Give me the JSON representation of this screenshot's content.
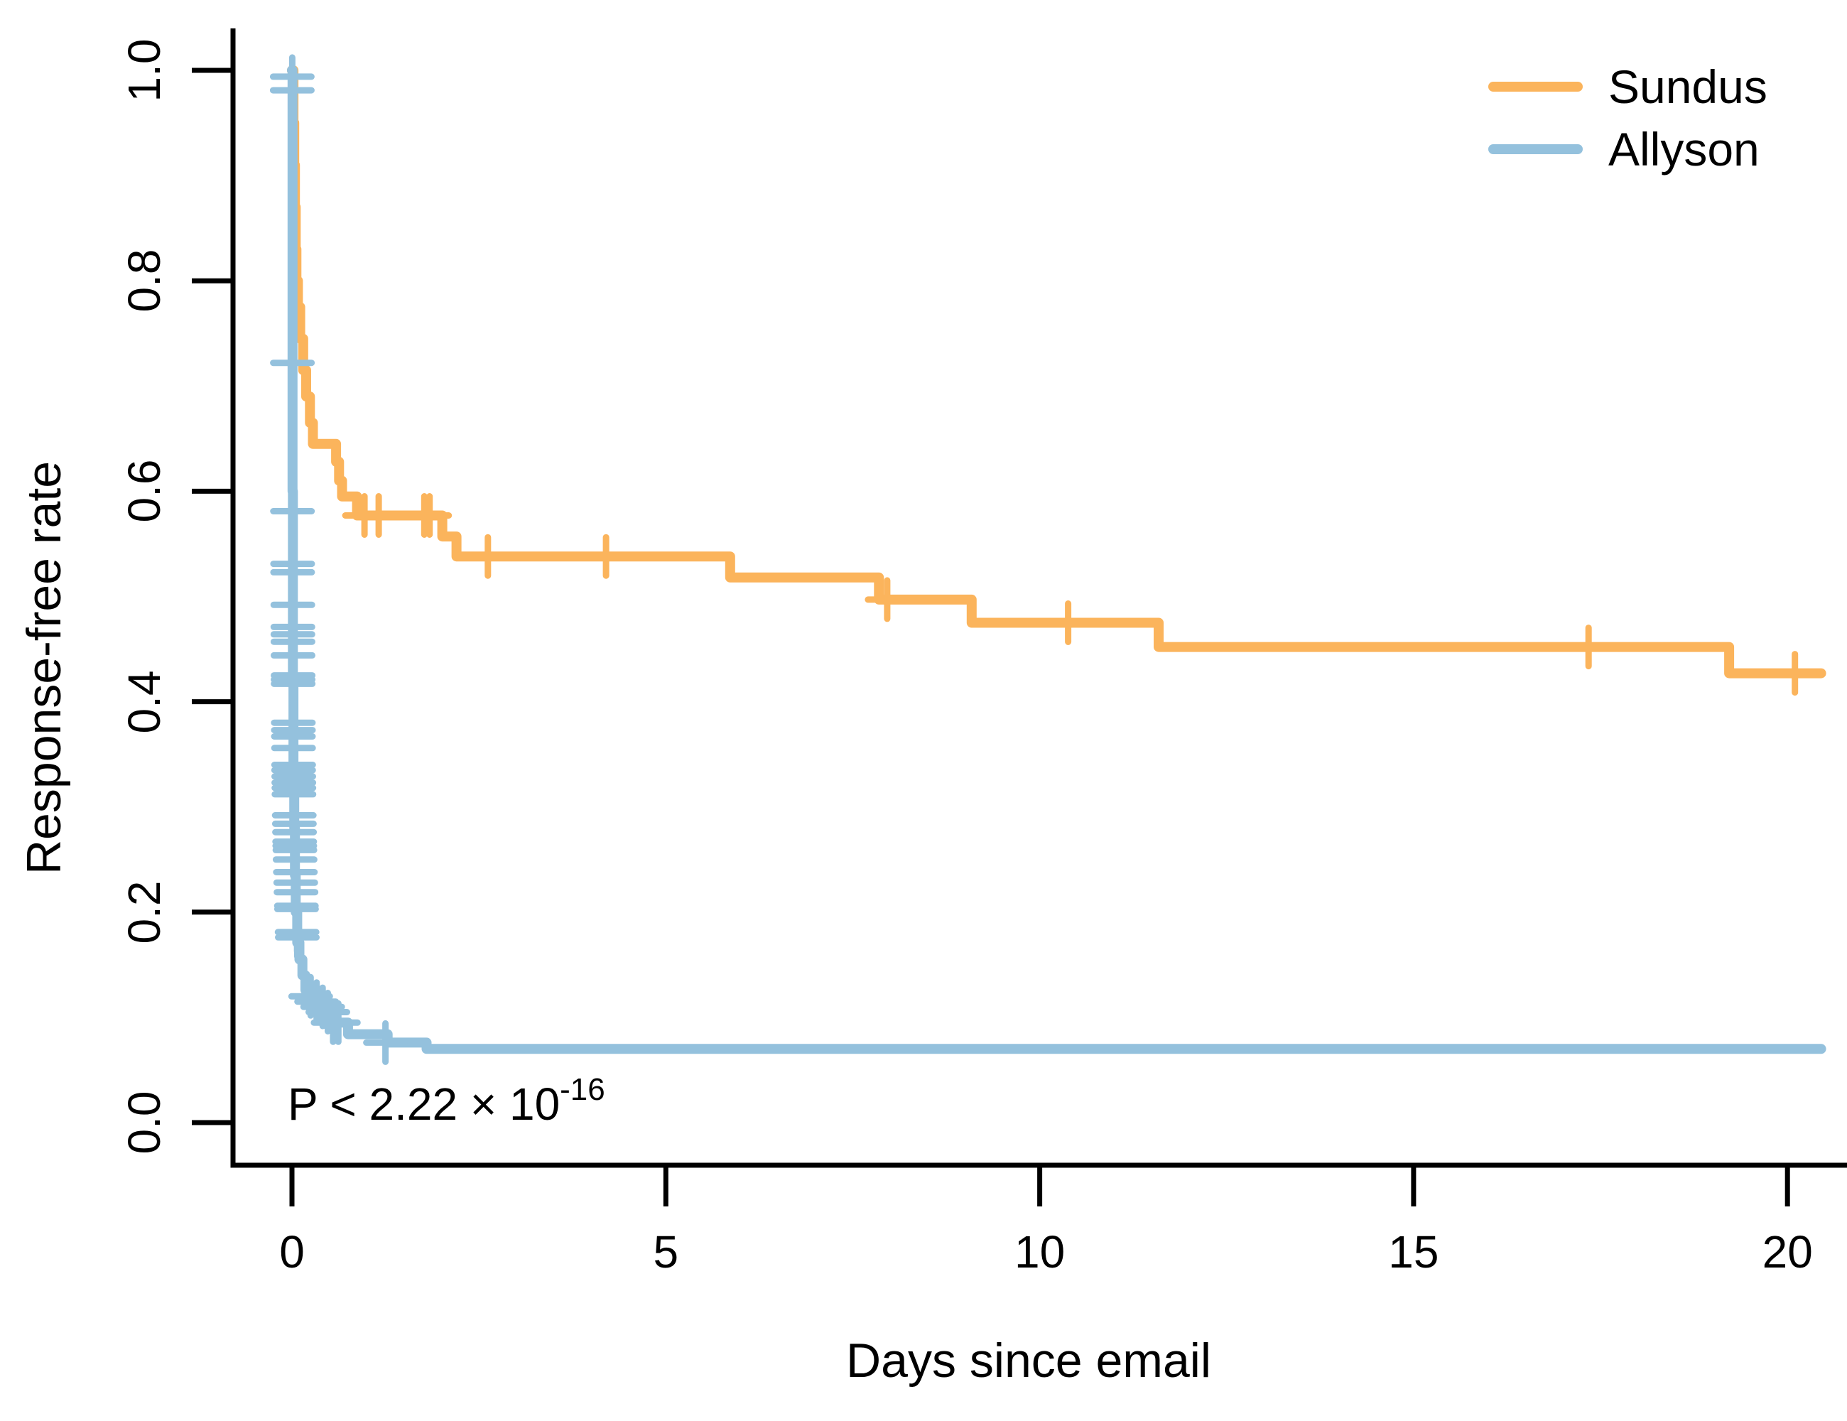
{
  "figure": {
    "p_value": {
      "text": "P < 2.22 × 10",
      "exponent": "-16"
    }
  },
  "axes": {
    "x": {
      "label": "Days since email",
      "ticks": [
        "0",
        "5",
        "10",
        "15",
        "20"
      ],
      "tick_values": [
        0,
        5,
        10,
        15,
        20
      ],
      "range": [
        0,
        20.8
      ]
    },
    "y": {
      "label": "Response-free rate",
      "ticks": [
        "0.0",
        "0.2",
        "0.4",
        "0.6",
        "0.8",
        "1.0"
      ],
      "tick_values": [
        0,
        0.2,
        0.4,
        0.6,
        0.8,
        1.0
      ],
      "range": [
        0,
        1
      ]
    }
  },
  "legend": {
    "items": [
      {
        "label": "Sundus",
        "color": "#FBB45C"
      },
      {
        "label": "Allyson",
        "color": "#94C1DD"
      }
    ]
  },
  "chart_data": {
    "type": "line",
    "subtype": "kaplan-meier-step",
    "title": "",
    "xlabel": "Days since email",
    "ylabel": "Response-free rate",
    "xlim": [
      0,
      20.8
    ],
    "ylim": [
      0,
      1
    ],
    "grid": false,
    "legend_position": "top-right",
    "annotation": "P < 2.22 × 10^-16",
    "series": [
      {
        "name": "Sundus",
        "color": "#FBB45C",
        "steps": [
          [
            0.0,
            1.0
          ],
          [
            0.02,
            0.95
          ],
          [
            0.03,
            0.91
          ],
          [
            0.04,
            0.87
          ],
          [
            0.05,
            0.83
          ],
          [
            0.06,
            0.8
          ],
          [
            0.08,
            0.775
          ],
          [
            0.11,
            0.745
          ],
          [
            0.15,
            0.715
          ],
          [
            0.19,
            0.69
          ],
          [
            0.24,
            0.665
          ],
          [
            0.28,
            0.645
          ],
          [
            0.59,
            0.628
          ],
          [
            0.63,
            0.61
          ],
          [
            0.67,
            0.595
          ],
          [
            0.87,
            0.577
          ],
          [
            2.01,
            0.557
          ],
          [
            2.2,
            0.538
          ],
          [
            5.86,
            0.518
          ],
          [
            7.85,
            0.497
          ],
          [
            9.09,
            0.475
          ],
          [
            11.59,
            0.452
          ],
          [
            19.22,
            0.427
          ],
          [
            20.45,
            0.427
          ]
        ],
        "censor_marks": [
          [
            0.97,
            0.577
          ],
          [
            1.16,
            0.577
          ],
          [
            1.77,
            0.577
          ],
          [
            1.84,
            0.577
          ],
          [
            2.62,
            0.538
          ],
          [
            4.2,
            0.538
          ],
          [
            7.96,
            0.497
          ],
          [
            10.38,
            0.475
          ],
          [
            17.34,
            0.452
          ],
          [
            20.1,
            0.427
          ]
        ]
      },
      {
        "name": "Allyson",
        "color": "#94C1DD",
        "steps": [
          [
            0.0,
            1.0
          ],
          [
            0.008,
            0.6
          ],
          [
            0.012,
            0.42
          ],
          [
            0.02,
            0.34
          ],
          [
            0.03,
            0.28
          ],
          [
            0.04,
            0.235
          ],
          [
            0.05,
            0.2
          ],
          [
            0.07,
            0.171
          ],
          [
            0.1,
            0.155
          ],
          [
            0.14,
            0.14
          ],
          [
            0.18,
            0.126
          ],
          [
            0.23,
            0.12
          ],
          [
            0.32,
            0.115
          ],
          [
            0.4,
            0.11
          ],
          [
            0.47,
            0.105
          ],
          [
            0.51,
            0.095
          ],
          [
            0.75,
            0.084
          ],
          [
            1.28,
            0.076
          ],
          [
            1.8,
            0.07
          ],
          [
            20.45,
            0.07
          ]
        ],
        "censor_marks": [
          [
            0.004,
            0.994
          ],
          [
            0.004,
            0.981
          ],
          [
            0.006,
            0.722
          ],
          [
            0.007,
            0.581
          ],
          [
            0.009,
            0.531
          ],
          [
            0.009,
            0.523
          ],
          [
            0.011,
            0.492
          ],
          [
            0.012,
            0.471
          ],
          [
            0.012,
            0.464
          ],
          [
            0.013,
            0.457
          ],
          [
            0.014,
            0.444
          ],
          [
            0.015,
            0.425
          ],
          [
            0.015,
            0.421
          ],
          [
            0.016,
            0.417
          ],
          [
            0.018,
            0.38
          ],
          [
            0.019,
            0.373
          ],
          [
            0.019,
            0.367
          ],
          [
            0.021,
            0.356
          ],
          [
            0.022,
            0.34
          ],
          [
            0.022,
            0.335
          ],
          [
            0.024,
            0.329
          ],
          [
            0.025,
            0.323
          ],
          [
            0.026,
            0.318
          ],
          [
            0.027,
            0.312
          ],
          [
            0.03,
            0.292
          ],
          [
            0.032,
            0.284
          ],
          [
            0.034,
            0.276
          ],
          [
            0.036,
            0.267
          ],
          [
            0.037,
            0.263
          ],
          [
            0.039,
            0.259
          ],
          [
            0.042,
            0.25
          ],
          [
            0.046,
            0.238
          ],
          [
            0.05,
            0.228
          ],
          [
            0.054,
            0.219
          ],
          [
            0.059,
            0.206
          ],
          [
            0.061,
            0.203
          ],
          [
            0.068,
            0.181
          ],
          [
            0.071,
            0.176
          ],
          [
            0.25,
            0.12
          ],
          [
            0.33,
            0.115
          ],
          [
            0.41,
            0.11
          ],
          [
            0.48,
            0.105
          ],
          [
            0.55,
            0.095
          ],
          [
            0.62,
            0.095
          ],
          [
            1.25,
            0.076
          ]
        ]
      }
    ]
  }
}
